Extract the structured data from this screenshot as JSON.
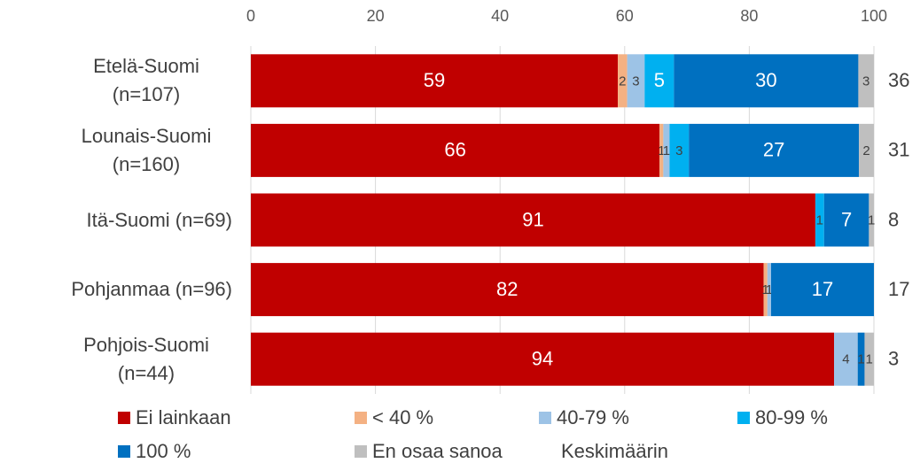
{
  "chart_data": {
    "type": "stacked-bar-horizontal",
    "categories": [
      "Etelä-Suomi (n=107)",
      "Lounais-Suomi (n=160)",
      "Itä-Suomi (n=69)",
      "Pohjanmaa (n=96)",
      "Pohjois-Suomi (n=44)"
    ],
    "series": [
      {
        "name": "Ei lainkaan",
        "color": "#c00000",
        "values": [
          58.9,
          65.6,
          90.6,
          82.3,
          93.6
        ],
        "value_labels": [
          "59",
          "66",
          "91",
          "82",
          "94"
        ]
      },
      {
        "name": "< 40 %",
        "color": "#f4b183",
        "values": [
          1.5,
          0.6,
          0,
          0.6,
          0
        ],
        "value_labels": [
          "2",
          "1",
          null,
          "1",
          null
        ]
      },
      {
        "name": "40-79 %",
        "color": "#9dc3e6",
        "values": [
          2.8,
          1.0,
          0,
          0.6,
          3.8
        ],
        "value_labels": [
          "3",
          "1",
          null,
          "1",
          "4"
        ]
      },
      {
        "name": "80-99 %",
        "color": "#00b0f0",
        "values": [
          4.7,
          3.1,
          1.4,
          0,
          0
        ],
        "value_labels": [
          "5",
          "3",
          "1",
          null,
          null
        ]
      },
      {
        "name": "100 %",
        "color": "#0070c0",
        "values": [
          29.6,
          27.3,
          7.2,
          16.5,
          1.1
        ],
        "value_labels": [
          "30",
          "27",
          "7",
          "17",
          "1"
        ]
      },
      {
        "name": "En osaa sanoa",
        "color": "#bfbfbf",
        "values": [
          2.5,
          2.4,
          0.8,
          0,
          1.5
        ],
        "value_labels": [
          "3",
          "2",
          "1",
          null,
          "1"
        ]
      }
    ],
    "average": {
      "name": "Keskimäärin",
      "values": [
        36,
        31,
        8,
        17,
        3
      ]
    },
    "xlim": [
      0,
      100
    ],
    "xticks": [
      0,
      20,
      40,
      60,
      80,
      100
    ],
    "grid": true
  }
}
